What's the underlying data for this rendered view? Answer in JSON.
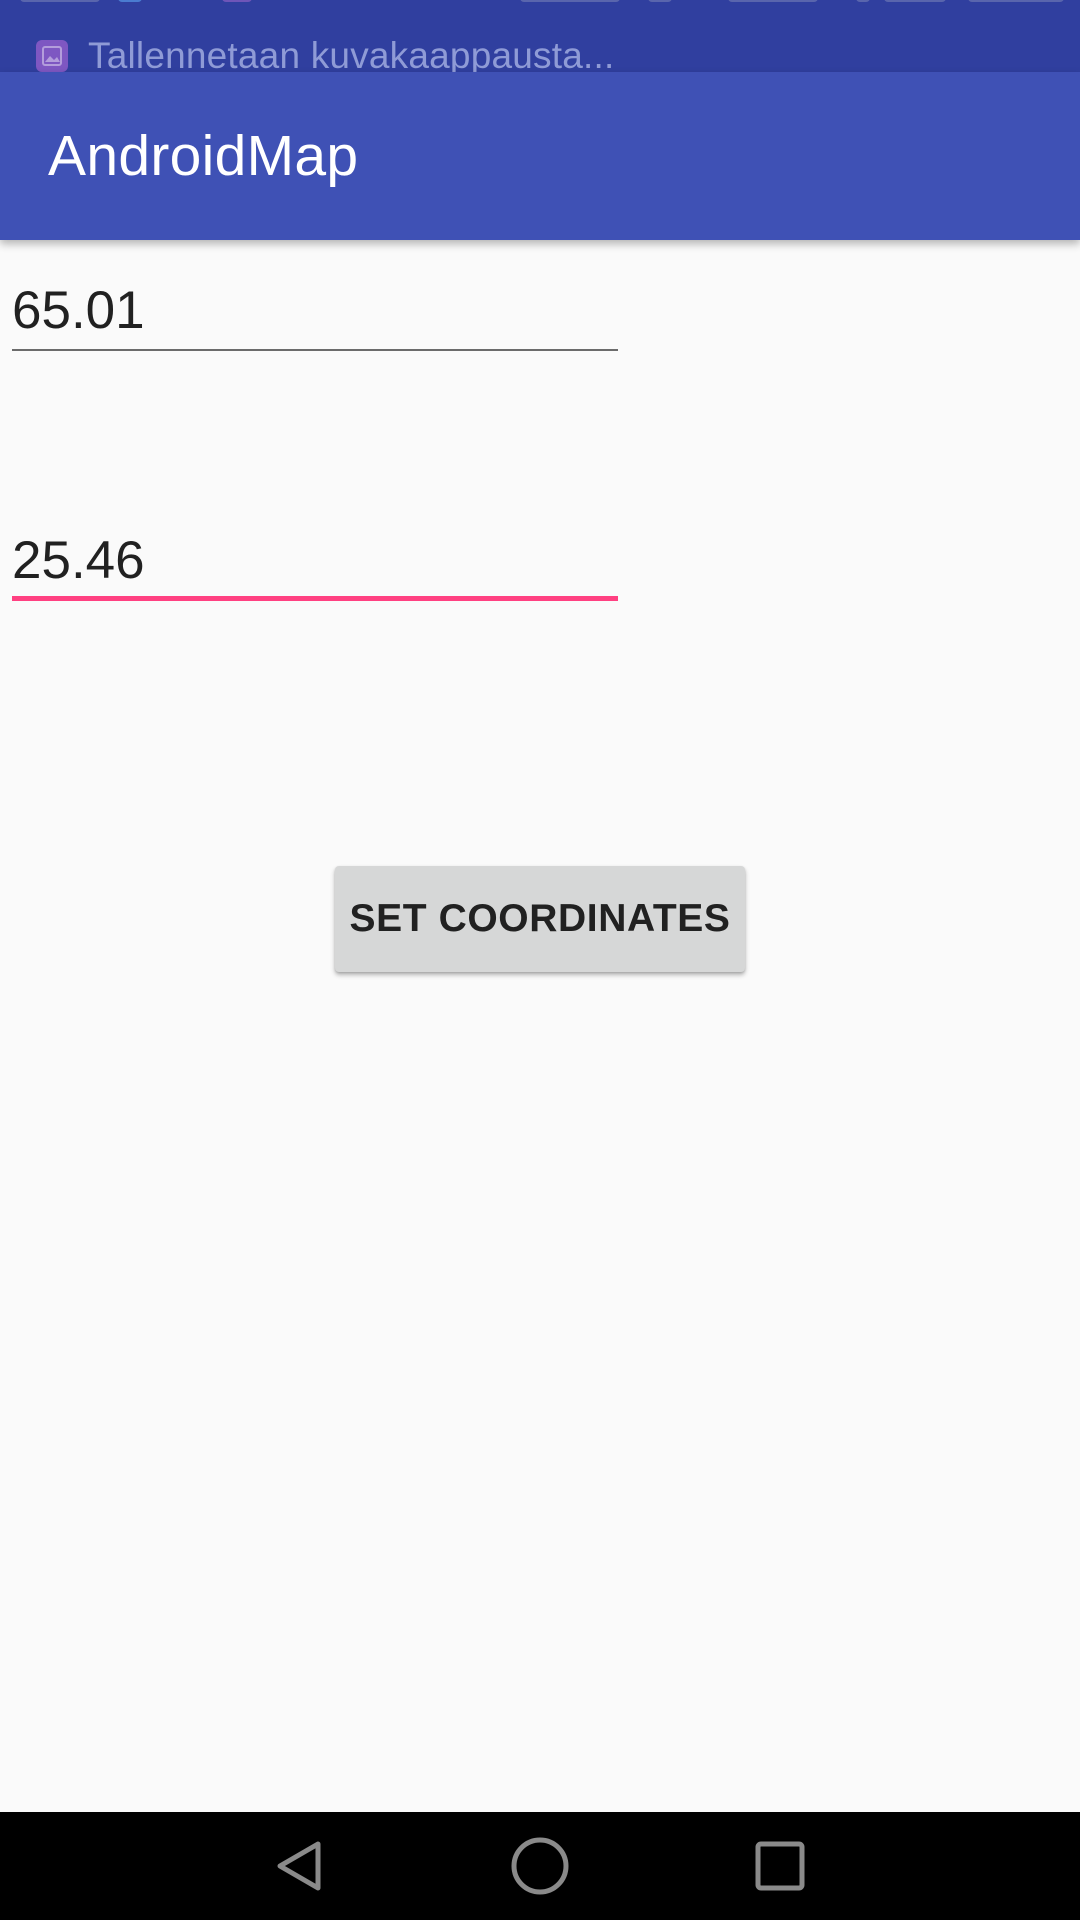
{
  "status_bar": {
    "notification_ticker": "Tallennetaan kuvakaappausta..."
  },
  "app_bar": {
    "title": "AndroidMap"
  },
  "form": {
    "latitude_value": "65.01",
    "longitude_value": "25.46",
    "set_button_label": "SET COORDINATES"
  },
  "nav_bar": {
    "back_icon": "back-triangle-icon",
    "home_icon": "home-circle-icon",
    "recents_icon": "recents-square-icon"
  },
  "colors": {
    "status_bar": "#303f9f",
    "app_bar": "#3f51b5",
    "accent": "#ff4081",
    "background": "#fafafa",
    "button": "#d6d7d7"
  }
}
